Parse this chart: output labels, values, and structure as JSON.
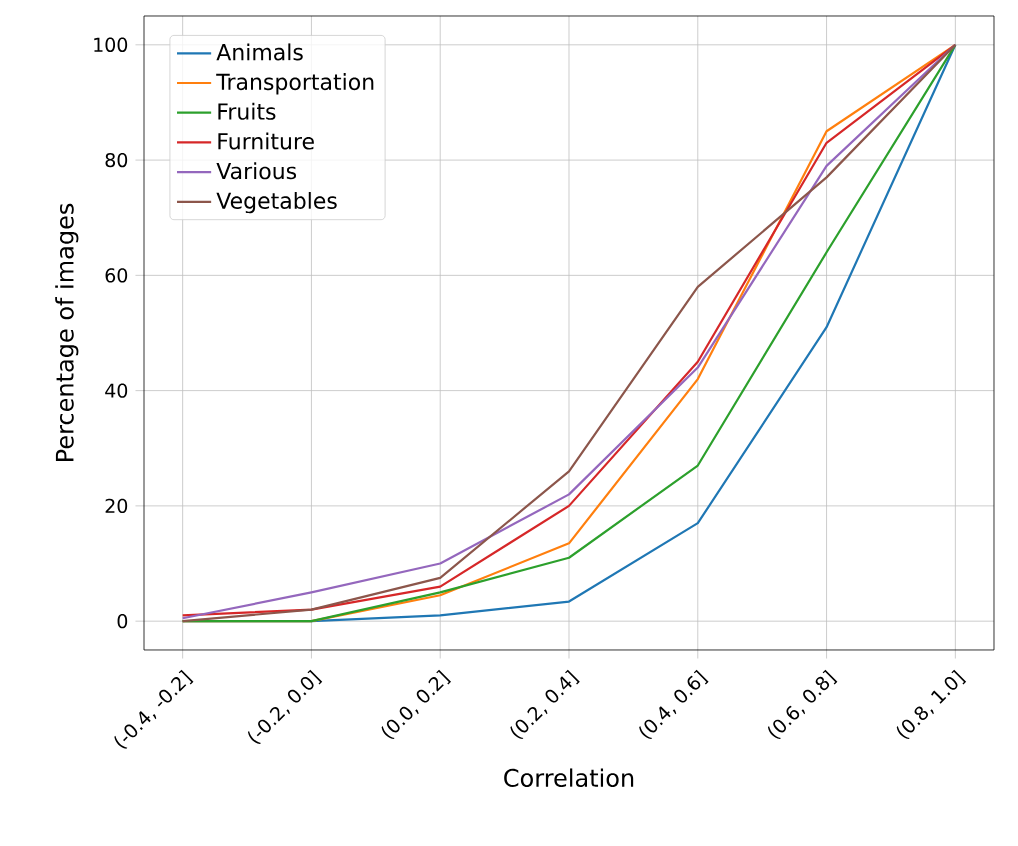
{
  "chart_data": {
    "type": "line",
    "xlabel": "Correlation",
    "ylabel": "Percentage of images",
    "categories": [
      "(-0.4, -0.2]",
      "(-0.2, 0.0]",
      "(0.0, 0.2]",
      "(0.2, 0.4]",
      "(0.4, 0.6]",
      "(0.6, 0.8]",
      "(0.8, 1.0]"
    ],
    "series": [
      {
        "name": "Animals",
        "color": "#1f77b4",
        "values": [
          0,
          0,
          1,
          3.4,
          17,
          51,
          100
        ]
      },
      {
        "name": "Transportation",
        "color": "#ff7f0e",
        "values": [
          0,
          0,
          4.5,
          13.5,
          42,
          85,
          100
        ]
      },
      {
        "name": "Fruits",
        "color": "#2ca02c",
        "values": [
          0,
          0,
          5,
          11,
          27,
          64,
          100
        ]
      },
      {
        "name": "Furniture",
        "color": "#d62728",
        "values": [
          1,
          2,
          6,
          20,
          45,
          83,
          100
        ]
      },
      {
        "name": "Various",
        "color": "#9467bd",
        "values": [
          0.5,
          5,
          10,
          22,
          44,
          79,
          100
        ]
      },
      {
        "name": "Vegetables",
        "color": "#8c564b",
        "values": [
          0,
          2,
          7.5,
          26,
          58,
          77,
          100
        ]
      }
    ],
    "ylim": [
      -5,
      105
    ],
    "yticks": [
      0,
      20,
      40,
      60,
      80,
      100
    ],
    "grid": true,
    "legend": "top left"
  }
}
